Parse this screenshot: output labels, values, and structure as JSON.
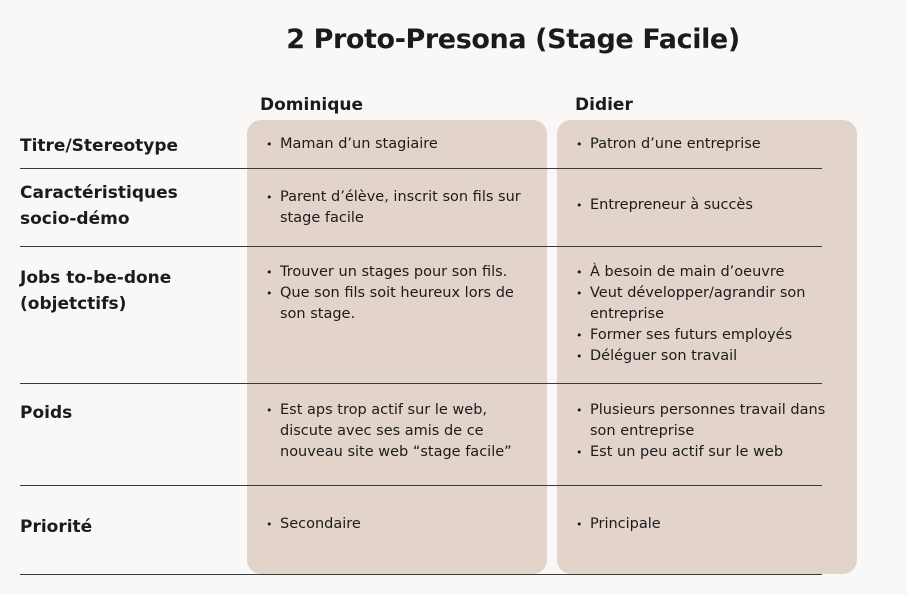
{
  "title": "2 Proto-Presona (Stage Facile)",
  "columns": [
    {
      "name": "Dominique"
    },
    {
      "name": "Didier"
    }
  ],
  "rows": [
    {
      "label": "Titre/Stereotype",
      "col1": [
        "Maman d’un stagiaire"
      ],
      "col2": [
        "Patron d’une entreprise"
      ]
    },
    {
      "label": "Caractéristiques socio-démo",
      "col1": [
        "Parent d’élève, inscrit son fils sur stage facile"
      ],
      "col2": [
        "Entrepreneur à succès"
      ]
    },
    {
      "label": "Jobs to-be-done (objetctifs)",
      "col1": [
        "Trouver un stages pour son fils.",
        "Que son fils soit heureux lors de son stage."
      ],
      "col2": [
        "À besoin de main d’oeuvre",
        "Veut développer/agrandir son entreprise",
        "Former ses futurs employés",
        "Déléguer son travail"
      ]
    },
    {
      "label": "Poids",
      "col1": [
        "Est aps trop actif sur le web, discute avec ses amis de ce nouveau site web “stage facile”"
      ],
      "col2": [
        "Plusieurs personnes travail dans son entreprise",
        "Est un peu actif sur le web"
      ]
    },
    {
      "label": "Priorité",
      "col1": [
        "Secondaire"
      ],
      "col2": [
        "Principale"
      ]
    }
  ]
}
